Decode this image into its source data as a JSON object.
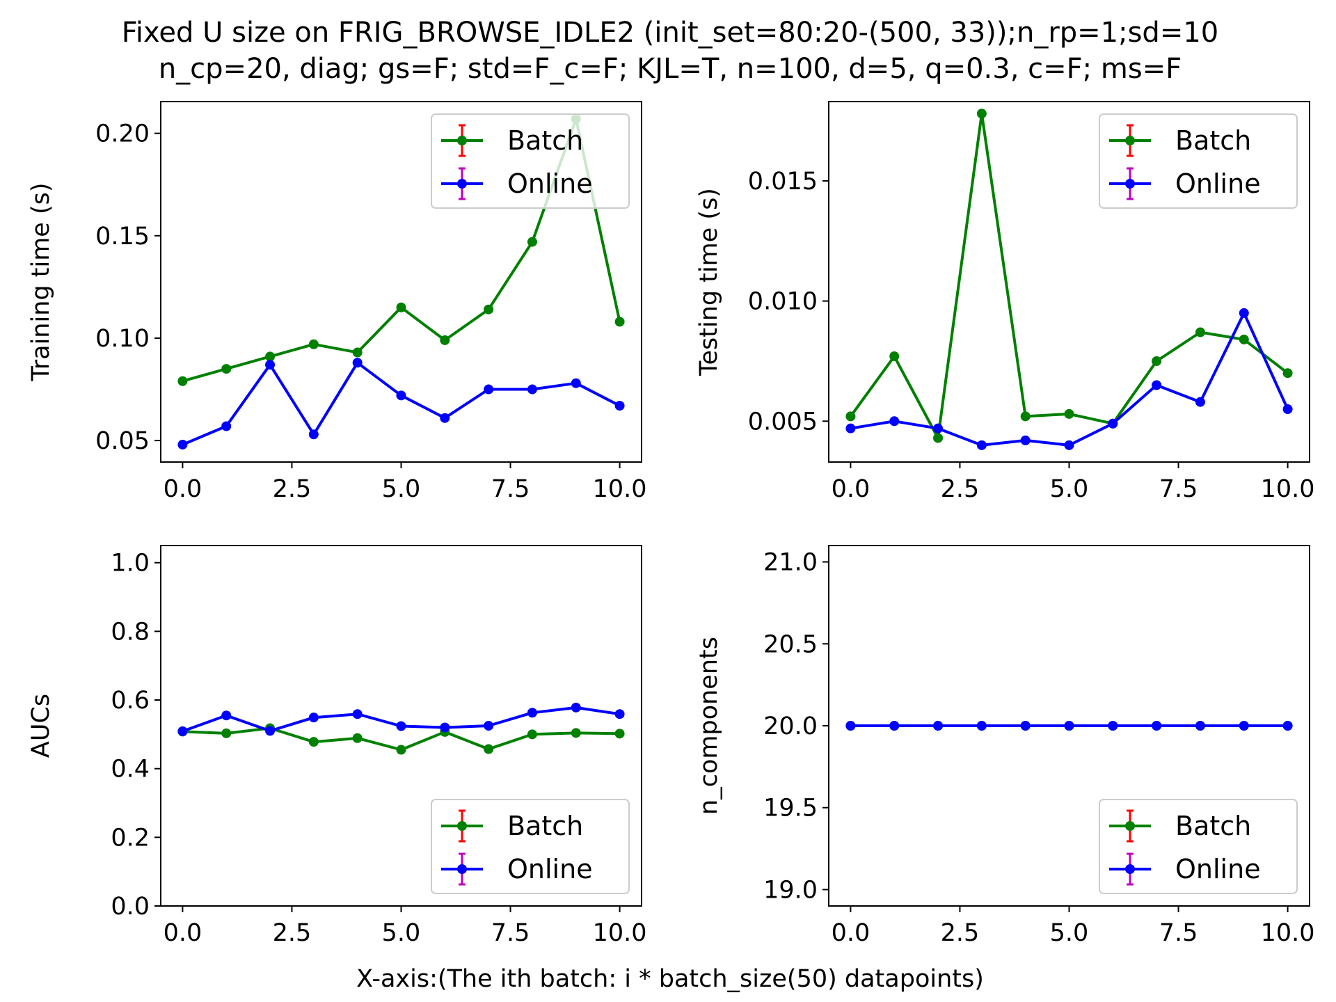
{
  "chart_data": [
    {
      "type": "line",
      "title_lines": [
        "Fixed U size on FRIG_BROWSE_IDLE2 (init_set=80:20-(500, 33));n_rp=1;sd=10",
        "n_cp=20, diag; gs=F; std=F_c=F; KJL=T, n=100, d=5, q=0.3, c=F; ms=F"
      ],
      "xlabel": "X-axis:(The ith batch: i * batch_size(50) datapoints)",
      "subplots": [
        {
          "id": "training",
          "ylabel": "Training time (s)",
          "xlim": [
            -0.5,
            10.5
          ],
          "ylim": [
            0.0395,
            0.2155
          ],
          "xticks": [
            0,
            2.5,
            5,
            7.5,
            10
          ],
          "xtick_labels": [
            "0.0",
            "2.5",
            "5.0",
            "7.5",
            "10.0"
          ],
          "yticks": [
            0.05,
            0.1,
            0.15,
            0.2
          ],
          "ytick_labels": [
            "0.05",
            "0.10",
            "0.15",
            "0.20"
          ],
          "legend_position": "upper right",
          "x": [
            0,
            1,
            2,
            3,
            4,
            5,
            6,
            7,
            8,
            9,
            10
          ],
          "series": [
            {
              "name": "Batch",
              "color": "#008000",
              "errcolor": "#ff0000",
              "values": [
                0.079,
                0.085,
                0.091,
                0.097,
                0.093,
                0.115,
                0.099,
                0.114,
                0.147,
                0.207,
                0.108
              ]
            },
            {
              "name": "Online",
              "color": "#0000ff",
              "errcolor": "#bf00bf",
              "values": [
                0.048,
                0.057,
                0.087,
                0.053,
                0.088,
                0.072,
                0.061,
                0.075,
                0.075,
                0.078,
                0.067
              ]
            }
          ]
        },
        {
          "id": "testing",
          "ylabel": "Testing time (s)",
          "xlim": [
            -0.5,
            10.5
          ],
          "ylim": [
            0.0033,
            0.0183
          ],
          "xticks": [
            0,
            2.5,
            5,
            7.5,
            10
          ],
          "xtick_labels": [
            "0.0",
            "2.5",
            "5.0",
            "7.5",
            "10.0"
          ],
          "yticks": [
            0.005,
            0.01,
            0.015
          ],
          "ytick_labels": [
            "0.005",
            "0.010",
            "0.015"
          ],
          "legend_position": "upper right",
          "x": [
            0,
            1,
            2,
            3,
            4,
            5,
            6,
            7,
            8,
            9,
            10
          ],
          "series": [
            {
              "name": "Batch",
              "color": "#008000",
              "errcolor": "#ff0000",
              "values": [
                0.0052,
                0.0077,
                0.0043,
                0.0178,
                0.0052,
                0.0053,
                0.0049,
                0.0075,
                0.0087,
                0.0084,
                0.007
              ]
            },
            {
              "name": "Online",
              "color": "#0000ff",
              "errcolor": "#bf00bf",
              "values": [
                0.0047,
                0.005,
                0.0047,
                0.004,
                0.0042,
                0.004,
                0.0049,
                0.0065,
                0.0058,
                0.0095,
                0.0055
              ]
            }
          ]
        },
        {
          "id": "aucs",
          "ylabel": "AUCs",
          "xlim": [
            -0.5,
            10.5
          ],
          "ylim": [
            0.0,
            1.05
          ],
          "xticks": [
            0,
            2.5,
            5,
            7.5,
            10
          ],
          "xtick_labels": [
            "0.0",
            "2.5",
            "5.0",
            "7.5",
            "10.0"
          ],
          "yticks": [
            0.0,
            0.2,
            0.4,
            0.6,
            0.8,
            1.0
          ],
          "ytick_labels": [
            "0.0",
            "0.2",
            "0.4",
            "0.6",
            "0.8",
            "1.0"
          ],
          "legend_position": "lower right",
          "x": [
            0,
            1,
            2,
            3,
            4,
            5,
            6,
            7,
            8,
            9,
            10
          ],
          "series": [
            {
              "name": "Batch",
              "color": "#008000",
              "errcolor": "#ff0000",
              "values": [
                0.508,
                0.503,
                0.518,
                0.478,
                0.489,
                0.455,
                0.507,
                0.457,
                0.5,
                0.504,
                0.502
              ]
            },
            {
              "name": "Online",
              "color": "#0000ff",
              "errcolor": "#bf00bf",
              "values": [
                0.509,
                0.555,
                0.51,
                0.549,
                0.559,
                0.524,
                0.52,
                0.525,
                0.563,
                0.578,
                0.559
              ]
            }
          ]
        },
        {
          "id": "n_components",
          "ylabel": "n_components",
          "xlim": [
            -0.5,
            10.5
          ],
          "ylim": [
            18.9,
            21.1
          ],
          "xticks": [
            0,
            2.5,
            5,
            7.5,
            10
          ],
          "xtick_labels": [
            "0.0",
            "2.5",
            "5.0",
            "7.5",
            "10.0"
          ],
          "yticks": [
            19.0,
            19.5,
            20.0,
            20.5,
            21.0
          ],
          "ytick_labels": [
            "19.0",
            "19.5",
            "20.0",
            "20.5",
            "21.0"
          ],
          "legend_position": "lower right",
          "x": [
            0,
            1,
            2,
            3,
            4,
            5,
            6,
            7,
            8,
            9,
            10
          ],
          "series": [
            {
              "name": "Batch",
              "color": "#008000",
              "errcolor": "#ff0000",
              "values": [
                20,
                20,
                20,
                20,
                20,
                20,
                20,
                20,
                20,
                20,
                20
              ]
            },
            {
              "name": "Online",
              "color": "#0000ff",
              "errcolor": "#bf00bf",
              "values": [
                20,
                20,
                20,
                20,
                20,
                20,
                20,
                20,
                20,
                20,
                20
              ]
            }
          ]
        }
      ]
    }
  ]
}
